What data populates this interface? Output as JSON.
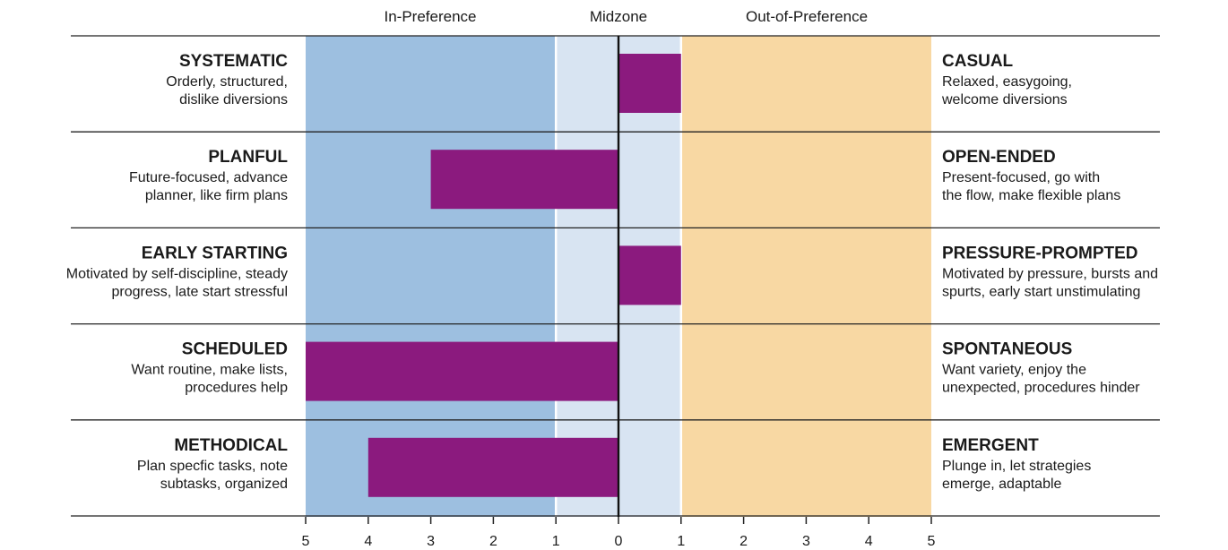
{
  "chart_data": {
    "type": "bar",
    "zones": {
      "in_preference": "In-Preference",
      "midzone": "Midzone",
      "out_of_preference": "Out-of-Preference"
    },
    "colors": {
      "in_preference": "#9dbfe0",
      "midzone": "#d8e4f2",
      "out_of_preference": "#f8d8a3",
      "bar": "#8b1a7e"
    },
    "xlim": [
      -5,
      5
    ],
    "tick_labels": [
      "5",
      "4",
      "3",
      "2",
      "1",
      "0",
      "1",
      "2",
      "3",
      "4",
      "5"
    ],
    "rows": [
      {
        "left_title": "SYSTEMATIC",
        "left_desc": [
          "Orderly, structured,",
          "dislike diversions"
        ],
        "right_title": "CASUAL",
        "right_desc": [
          "Relaxed, easygoing,",
          "welcome diversions"
        ],
        "value": 1
      },
      {
        "left_title": "PLANFUL",
        "left_desc": [
          "Future-focused, advance",
          "planner, like firm plans"
        ],
        "right_title": "OPEN-ENDED",
        "right_desc": [
          "Present-focused, go with",
          "the flow, make flexible plans"
        ],
        "value": -3
      },
      {
        "left_title": "EARLY STARTING",
        "left_desc": [
          "Motivated by self-discipline, steady",
          "progress, late start stressful"
        ],
        "right_title": "PRESSURE-PROMPTED",
        "right_desc": [
          "Motivated by pressure, bursts and",
          "spurts, early start unstimulating"
        ],
        "value": 1
      },
      {
        "left_title": "SCHEDULED",
        "left_desc": [
          "Want routine, make lists,",
          "procedures help"
        ],
        "right_title": "SPONTANEOUS",
        "right_desc": [
          "Want variety, enjoy the",
          "unexpected, procedures hinder"
        ],
        "value": -5
      },
      {
        "left_title": "METHODICAL",
        "left_desc": [
          "Plan specfic tasks, note",
          "subtasks, organized"
        ],
        "right_title": "EMERGENT",
        "right_desc": [
          "Plunge in, let strategies",
          "emerge, adaptable"
        ],
        "value": -4
      }
    ]
  }
}
